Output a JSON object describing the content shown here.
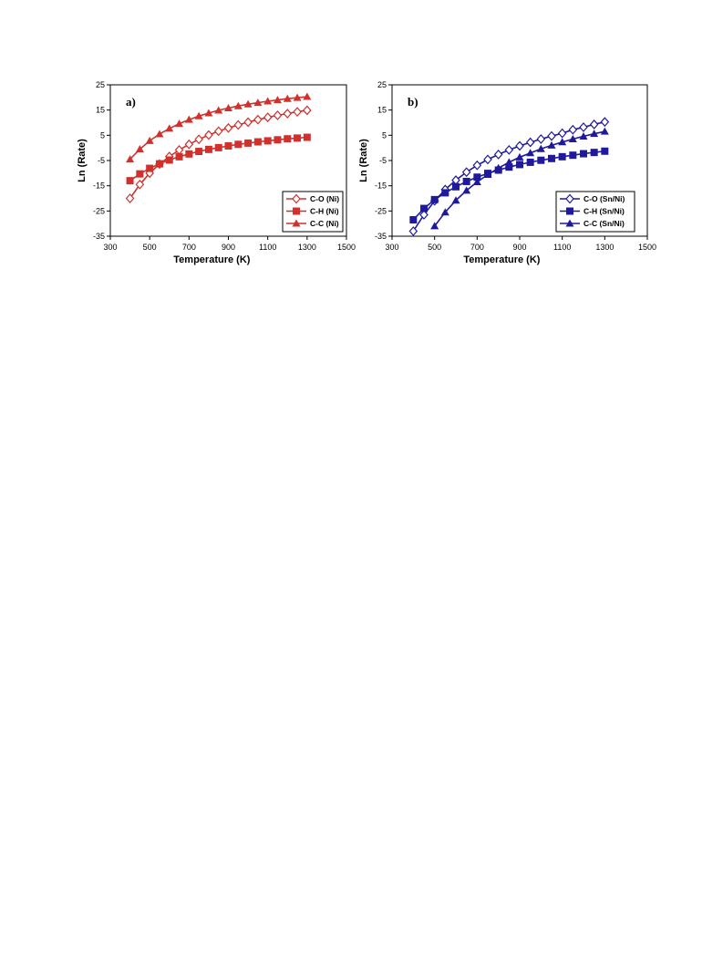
{
  "chart_data": [
    {
      "type": "line",
      "panel_label": "a)",
      "xlabel": "Temperature (K)",
      "ylabel": "Ln (Rate)",
      "xlim": [
        300,
        1500
      ],
      "ylim": [
        -35,
        25
      ],
      "xticks": [
        300,
        500,
        700,
        900,
        1100,
        1300,
        1500
      ],
      "yticks": [
        -35,
        -25,
        -15,
        -5,
        5,
        15,
        25
      ],
      "color": "#d0312d",
      "legend_position": "bottom-right",
      "x": [
        400,
        450,
        500,
        550,
        600,
        650,
        700,
        750,
        800,
        850,
        900,
        950,
        1000,
        1050,
        1100,
        1150,
        1200,
        1250,
        1300
      ],
      "series": [
        {
          "name": "C-O (Ni)",
          "marker": "diamond-open",
          "values": [
            -20.0,
            -14.5,
            -10.0,
            -6.4,
            -3.4,
            -0.8,
            1.4,
            3.4,
            5.1,
            6.6,
            7.9,
            9.1,
            10.2,
            11.2,
            12.1,
            12.9,
            13.6,
            14.3,
            14.9
          ]
        },
        {
          "name": "C-H (Ni)",
          "marker": "square",
          "values": [
            -13.0,
            -10.3,
            -8.1,
            -6.3,
            -4.8,
            -3.5,
            -2.4,
            -1.4,
            -0.6,
            0.1,
            0.8,
            1.4,
            1.9,
            2.4,
            2.8,
            3.2,
            3.6,
            3.9,
            4.2
          ]
        },
        {
          "name": "C-C (Ni)",
          "marker": "triangle",
          "values": [
            -4.5,
            -0.5,
            2.8,
            5.5,
            7.7,
            9.6,
            11.2,
            12.6,
            13.8,
            14.9,
            15.8,
            16.6,
            17.3,
            17.9,
            18.5,
            19.0,
            19.5,
            19.9,
            20.3
          ]
        }
      ]
    },
    {
      "type": "line",
      "panel_label": "b)",
      "xlabel": "Temperature (K)",
      "ylabel": "Ln (Rate)",
      "xlim": [
        300,
        1500
      ],
      "ylim": [
        -35,
        25
      ],
      "xticks": [
        300,
        500,
        700,
        900,
        1100,
        1300,
        1500
      ],
      "yticks": [
        -35,
        -25,
        -15,
        -5,
        5,
        15,
        25
      ],
      "color": "#1f1a9c",
      "legend_position": "bottom-right",
      "series": [
        {
          "name": "C-O (Sn/Ni)",
          "marker": "diamond-open",
          "x": [
            400,
            450,
            500,
            550,
            600,
            650,
            700,
            750,
            800,
            850,
            900,
            950,
            1000,
            1050,
            1100,
            1150,
            1200,
            1250,
            1300
          ],
          "values": [
            -33.0,
            -26.5,
            -21.0,
            -16.5,
            -12.8,
            -9.6,
            -6.9,
            -4.6,
            -2.6,
            -0.8,
            0.8,
            2.2,
            3.5,
            4.7,
            5.8,
            7.2,
            8.2,
            9.3,
            10.3
          ]
        },
        {
          "name": "C-H (Sn/Ni)",
          "marker": "square",
          "x": [
            400,
            450,
            500,
            550,
            600,
            650,
            700,
            750,
            800,
            850,
            900,
            950,
            1000,
            1050,
            1100,
            1150,
            1200,
            1250,
            1300
          ],
          "values": [
            -28.5,
            -24.0,
            -20.5,
            -17.8,
            -15.4,
            -13.3,
            -11.6,
            -10.1,
            -8.8,
            -7.6,
            -6.6,
            -5.7,
            -4.9,
            -4.2,
            -3.5,
            -2.9,
            -2.3,
            -1.8,
            -1.3
          ]
        },
        {
          "name": "C-C (Sn/Ni)",
          "marker": "triangle",
          "x": [
            500,
            550,
            600,
            650,
            700,
            750,
            800,
            850,
            900,
            950,
            1000,
            1050,
            1100,
            1150,
            1200,
            1250,
            1300
          ],
          "values": [
            -31.0,
            -25.5,
            -20.8,
            -16.9,
            -13.5,
            -10.6,
            -8.0,
            -5.7,
            -3.7,
            -2.0,
            -0.4,
            1.0,
            2.3,
            3.5,
            4.6,
            5.6,
            6.5
          ]
        }
      ]
    }
  ]
}
